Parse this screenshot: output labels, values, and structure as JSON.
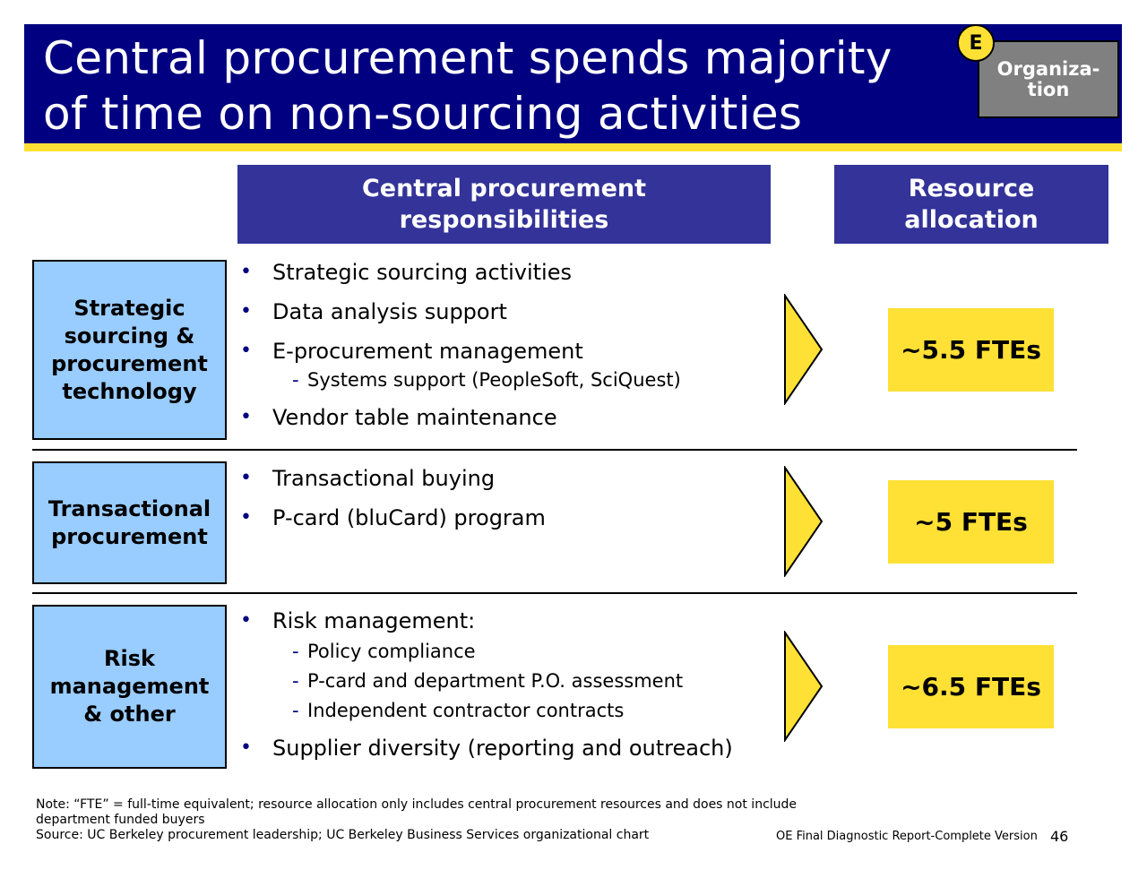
{
  "header": {
    "title_line1": "Central procurement spends majority",
    "title_line2": "of time on non-sourcing activities",
    "tag_letter": "E",
    "tag_line1": "Organiza-",
    "tag_line2": "tion"
  },
  "columns": {
    "responsibilities_line1": "Central procurement",
    "responsibilities_line2": "responsibilities",
    "allocation_line1": "Resource",
    "allocation_line2": "allocation"
  },
  "rows": [
    {
      "category_lines": [
        "Strategic",
        "sourcing &",
        "procurement",
        "technology"
      ],
      "items": [
        "Strategic sourcing activities",
        "Data analysis support",
        "E-procurement management",
        "Systems support (PeopleSoft, SciQuest)",
        "Vendor table maintenance"
      ],
      "fte": "~5.5 FTEs"
    },
    {
      "category_lines": [
        "Transactional",
        "procurement"
      ],
      "items": [
        "Transactional buying",
        "P-card (bluCard) program"
      ],
      "fte": "~5 FTEs"
    },
    {
      "category_lines": [
        "Risk",
        "management",
        "& other"
      ],
      "items": [
        "Risk management:",
        "Policy compliance",
        "P-card and department P.O. assessment",
        "Independent contractor contracts",
        "Supplier diversity (reporting and outreach)"
      ],
      "fte": "~6.5 FTEs"
    }
  ],
  "footer": {
    "note_line1": "Note: “FTE” = full-time equivalent; resource allocation only includes central procurement resources and does not include",
    "note_line2": "department funded buyers",
    "source": "Source: UC Berkeley procurement leadership; UC Berkeley Business Services organizational chart",
    "doc_label": "OE Final Diagnostic Report-Complete Version",
    "page_number": "46"
  },
  "colors": {
    "title_bg": "#000080",
    "accent_yellow": "#ffe135",
    "header_bg": "#333399",
    "category_bg": "#99ccff",
    "tag_bg": "#808080"
  }
}
